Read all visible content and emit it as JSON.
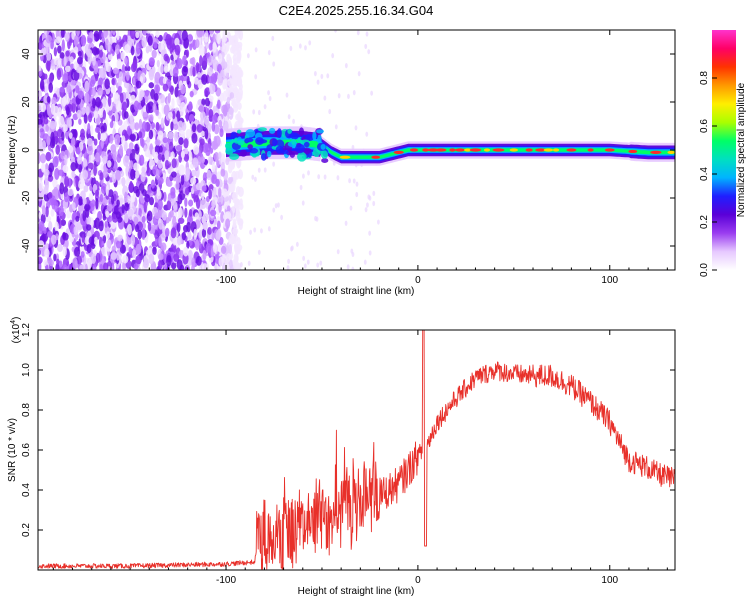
{
  "title": "C2E4.2025.255.16.34.G04",
  "chart_data": [
    {
      "type": "heatmap",
      "name": "spectrogram",
      "xlabel": "Height of straight line (km)",
      "ylabel": "Frequency (Hz)",
      "xlim": [
        -198,
        134
      ],
      "ylim": [
        -50,
        50
      ],
      "x_ticks": [
        -100,
        0,
        100
      ],
      "x_tick_labels": [
        "-100",
        "0",
        "100"
      ],
      "y_ticks": [
        -40,
        -20,
        0,
        20,
        40
      ],
      "y_tick_labels": [
        "-40",
        "-20",
        "0",
        "20",
        "40"
      ],
      "noise_region_x": [
        -198,
        -92
      ],
      "transition_region_x": [
        -100,
        -48
      ],
      "signal_line": {
        "x": [
          -100,
          -80,
          -60,
          -50,
          -45,
          -40,
          -35,
          -30,
          -25,
          -20,
          -15,
          -10,
          -5,
          0,
          10,
          20,
          40,
          60,
          80,
          100,
          120,
          134
        ],
        "freq": [
          2,
          3,
          3,
          2,
          -1,
          -3,
          -3,
          -3,
          -3,
          -3,
          -2,
          -1,
          0,
          0,
          0,
          0,
          0,
          0,
          0,
          0,
          -1,
          -1
        ]
      },
      "colorbar": {
        "label": "Normalized spectral amplitude",
        "range": [
          0,
          1
        ],
        "ticks": [
          0.0,
          0.2,
          0.4,
          0.6,
          0.8
        ],
        "tick_labels": [
          "0.0",
          "0.2",
          "0.4",
          "0.6",
          "0.8"
        ],
        "colors": [
          "#ffffff",
          "#e6c8ff",
          "#9a3df0",
          "#5a00d8",
          "#1f1fff",
          "#00b4ff",
          "#00e0c0",
          "#00ff66",
          "#aaff00",
          "#ffee00",
          "#ff9900",
          "#ff3300",
          "#ff0066",
          "#ff33cc"
        ]
      }
    },
    {
      "type": "line",
      "name": "snr",
      "xlabel": "Height of straight line (km)",
      "ylabel": "SNR (10 * v/v)",
      "scale_label": "(x10",
      "scale_exponent": "4",
      "scale_suffix": ")",
      "xlim": [
        -198,
        134
      ],
      "ylim": [
        0,
        1.2
      ],
      "x_ticks": [
        -100,
        0,
        100
      ],
      "x_tick_labels": [
        "-100",
        "0",
        "100"
      ],
      "y_ticks": [
        0.2,
        0.4,
        0.6,
        0.8,
        1.0,
        1.2
      ],
      "y_tick_labels": [
        "0.2",
        "0.4",
        "0.6",
        "0.8",
        "1.0",
        "1.2"
      ],
      "line_color": "#e8302a",
      "trend": {
        "x": [
          -198,
          -150,
          -100,
          -85,
          -84,
          -70,
          -60,
          -50,
          -40,
          -30,
          -20,
          -10,
          0,
          5,
          10,
          20,
          30,
          40,
          50,
          60,
          70,
          80,
          90,
          100,
          105,
          110,
          115,
          120,
          125,
          134
        ],
        "y": [
          0.02,
          0.02,
          0.03,
          0.04,
          0.12,
          0.16,
          0.22,
          0.27,
          0.31,
          0.34,
          0.37,
          0.43,
          0.57,
          0.63,
          0.74,
          0.86,
          0.96,
          1.0,
          0.98,
          0.97,
          0.97,
          0.92,
          0.84,
          0.74,
          0.64,
          0.55,
          0.53,
          0.51,
          0.48,
          0.45
        ]
      },
      "features": [
        {
          "x": 3,
          "y": 1.2
        },
        {
          "x": 4,
          "y": 0.12
        }
      ]
    }
  ]
}
